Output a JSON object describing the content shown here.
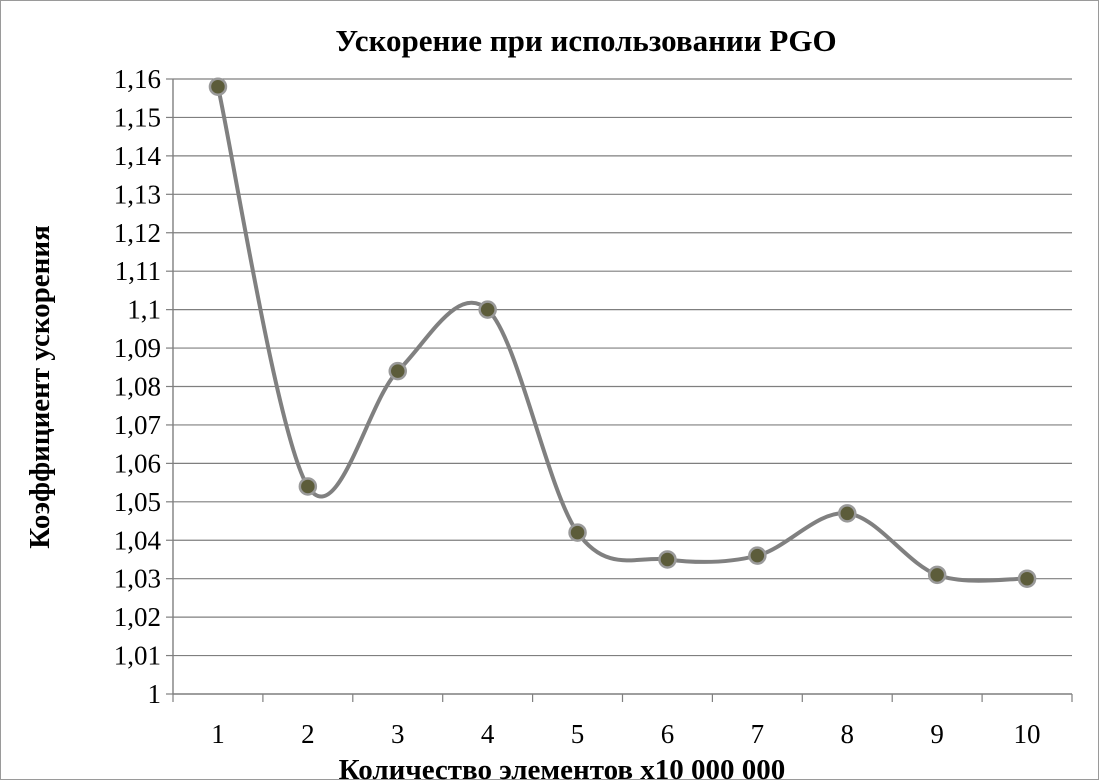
{
  "chart_data": {
    "type": "line",
    "smooth": true,
    "title": "Ускорение при использовании PGO",
    "xlabel": "Количество элементов х10 000 000",
    "ylabel": "Коэффициент ускорения",
    "categories": [
      "1",
      "2",
      "3",
      "4",
      "5",
      "6",
      "7",
      "8",
      "9",
      "10"
    ],
    "series": [
      {
        "values": [
          1.158,
          1.054,
          1.084,
          1.1,
          1.042,
          1.035,
          1.036,
          1.047,
          1.031,
          1.03
        ]
      }
    ],
    "ylim": [
      1,
      1.16
    ],
    "y_ticks": [
      "1",
      "1,01",
      "1,02",
      "1,03",
      "1,04",
      "1,05",
      "1,06",
      "1,07",
      "1,08",
      "1,09",
      "1,1",
      "1,11",
      "1,12",
      "1,13",
      "1,14",
      "1,15",
      "1,16"
    ],
    "grid": "horizontal",
    "legend": "none",
    "colors": {
      "line": "#808080",
      "marker_fill": "#5c5c3a",
      "marker_stroke": "#9a9a9a",
      "grid": "#7f7f7f"
    }
  }
}
